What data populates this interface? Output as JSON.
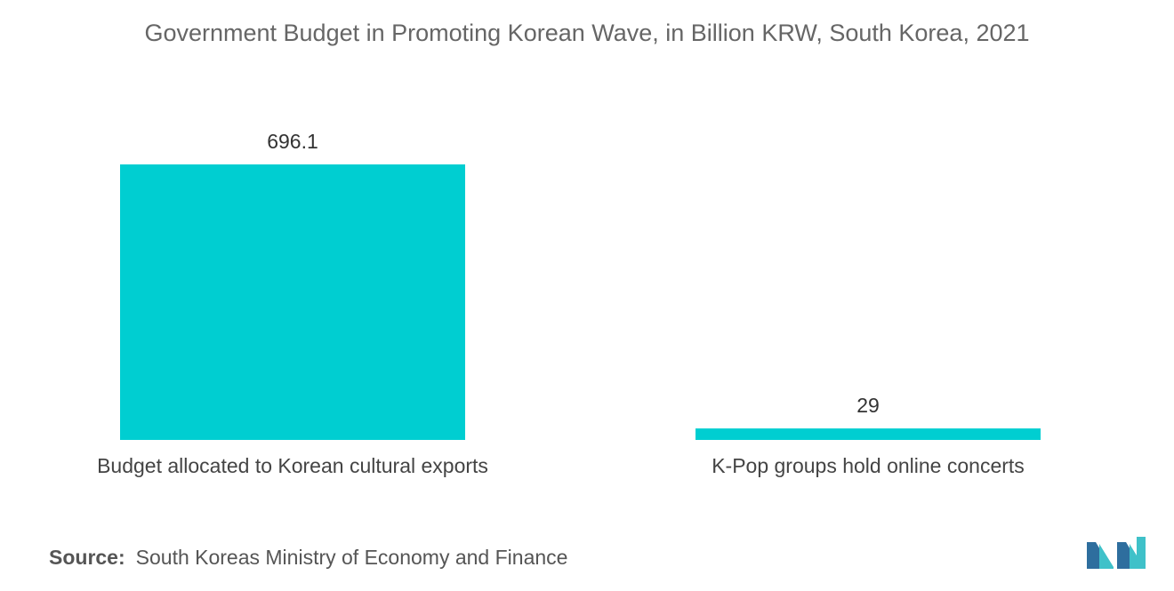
{
  "chart_data": {
    "type": "bar",
    "title": "Government Budget in Promoting Korean Wave, in Billion KRW,  South Korea, 2021",
    "categories": [
      "Budget allocated to Korean cultural exports",
      "K-Pop groups hold online concerts"
    ],
    "values": [
      696.1,
      29
    ],
    "value_labels": [
      "696.1",
      "29"
    ],
    "xlabel": "",
    "ylabel": "",
    "ylim": [
      0,
      696.1
    ],
    "grid": false,
    "legend": "none",
    "bar_color": "#00CED1"
  },
  "source": {
    "label": "Source:",
    "text": "South Koreas Ministry of Economy and Finance"
  },
  "logo": {
    "icon": "mordor-intelligence-logo-icon",
    "colors": [
      "#2E6E9E",
      "#3FC1C9"
    ]
  }
}
